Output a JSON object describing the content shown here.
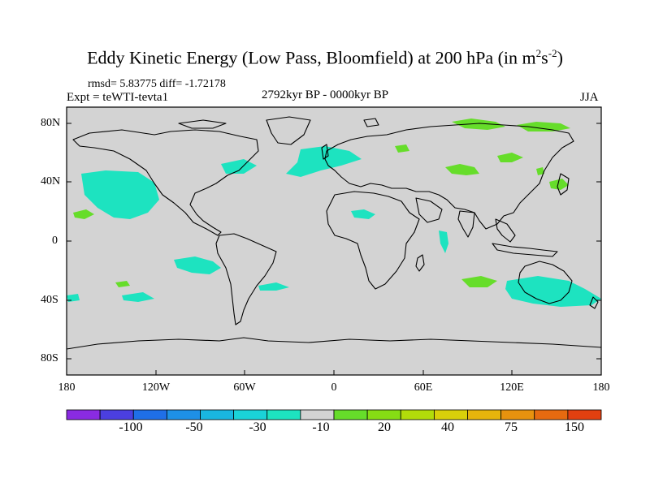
{
  "title": {
    "text": "Eddy Kinetic Energy (Low Pass, Bloomfield) at 200 hPa (in m",
    "sup1": "2",
    "mid": "s",
    "sup2": "-2",
    "end": ")"
  },
  "stats": "rmsd= 5.83775 diff= -1.72178",
  "expt": "Expt = teWTI-tevta1",
  "period": "2792kyr BP - 0000kyr BP",
  "season": "JJA",
  "lat_labels": [
    "80N",
    "40N",
    "0",
    "40S",
    "80S"
  ],
  "lon_labels": [
    "180",
    "120W",
    "60W",
    "0",
    "60E",
    "120E",
    "180"
  ],
  "colorbar": {
    "colors": [
      "#8a2be2",
      "#4b3fe0",
      "#1f6fe8",
      "#1e90e6",
      "#19b6e0",
      "#1ad3d8",
      "#1de3c0",
      "#d3d3d3",
      "#66dd2a",
      "#86dd14",
      "#b2dc0a",
      "#d9d00a",
      "#e6b40c",
      "#e8920e",
      "#e66a10",
      "#e24010"
    ],
    "labels": [
      "-100",
      "-50",
      "-30",
      "-10",
      "20",
      "40",
      "75",
      "150"
    ]
  },
  "map_colors": {
    "land_bg": "#d3d3d3",
    "cyan": "#1de3c0",
    "green": "#66dd2a"
  }
}
